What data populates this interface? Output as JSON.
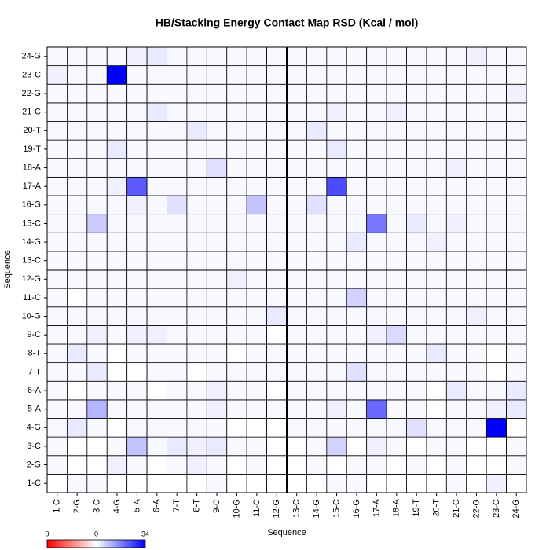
{
  "chart_data": {
    "type": "heatmap",
    "title": "HB/Stacking Energy Contact Map RSD (Kcal / mol)",
    "xlabel": "Sequence",
    "ylabel": "Sequence",
    "categories": [
      "1-C",
      "2-G",
      "3-C",
      "4-G",
      "5-A",
      "6-A",
      "7-T",
      "8-T",
      "9-C",
      "10-G",
      "11-C",
      "12-G",
      "13-C",
      "14-G",
      "15-C",
      "16-G",
      "17-A",
      "18-A",
      "19-T",
      "20-T",
      "21-C",
      "22-G",
      "23-C",
      "24-G"
    ],
    "values": [
      [
        0,
        1,
        1,
        0,
        0,
        0,
        0,
        0,
        1,
        0,
        0,
        0,
        0,
        0,
        1,
        1,
        0,
        0,
        0,
        0,
        1,
        0,
        2,
        0
      ],
      [
        1,
        0,
        0,
        2,
        1,
        0,
        1,
        2,
        1,
        0,
        1,
        0,
        0,
        1,
        0,
        1,
        1,
        0,
        1,
        0,
        1,
        0,
        0,
        1
      ],
      [
        1,
        0,
        0,
        1,
        8,
        1,
        3,
        2,
        3,
        1,
        1,
        0,
        0,
        1,
        6,
        0,
        2,
        1,
        0,
        1,
        1,
        0,
        0,
        1
      ],
      [
        1,
        3,
        1,
        0,
        1,
        1,
        1,
        1,
        1,
        0,
        0,
        0,
        1,
        1,
        1,
        1,
        1,
        1,
        4,
        1,
        1,
        1,
        34,
        0
      ],
      [
        1,
        1,
        10,
        1,
        1,
        1,
        1,
        1,
        2,
        1,
        1,
        1,
        1,
        1,
        2,
        1,
        20,
        1,
        1,
        0,
        1,
        1,
        2,
        3
      ],
      [
        1,
        0,
        1,
        1,
        1,
        0,
        1,
        1,
        2,
        1,
        1,
        0,
        1,
        1,
        1,
        1,
        1,
        1,
        1,
        0,
        3,
        1,
        1,
        3
      ],
      [
        1,
        1,
        3,
        0,
        0,
        1,
        1,
        0,
        1,
        1,
        1,
        1,
        1,
        1,
        1,
        4,
        1,
        1,
        1,
        1,
        1,
        1,
        0,
        1
      ],
      [
        1,
        3,
        1,
        0,
        1,
        1,
        1,
        1,
        1,
        0,
        1,
        1,
        1,
        1,
        1,
        1,
        1,
        1,
        1,
        3,
        1,
        1,
        0,
        1
      ],
      [
        1,
        1,
        2,
        1,
        2,
        2,
        1,
        1,
        1,
        1,
        1,
        0,
        1,
        1,
        1,
        1,
        2,
        5,
        1,
        1,
        1,
        1,
        1,
        1
      ],
      [
        1,
        1,
        1,
        1,
        1,
        1,
        1,
        1,
        1,
        1,
        1,
        3,
        1,
        1,
        1,
        1,
        1,
        1,
        1,
        1,
        1,
        2,
        1,
        1
      ],
      [
        1,
        0,
        1,
        1,
        1,
        1,
        1,
        1,
        1,
        1,
        1,
        1,
        1,
        1,
        1,
        6,
        1,
        1,
        1,
        1,
        1,
        1,
        1,
        1
      ],
      [
        1,
        1,
        1,
        1,
        1,
        1,
        1,
        1,
        1,
        2,
        1,
        1,
        1,
        1,
        1,
        1,
        1,
        1,
        1,
        1,
        1,
        1,
        1,
        1
      ],
      [
        1,
        1,
        1,
        1,
        1,
        1,
        1,
        1,
        1,
        1,
        1,
        1,
        1,
        1,
        1,
        1,
        1,
        1,
        1,
        1,
        1,
        1,
        1,
        1
      ],
      [
        1,
        1,
        1,
        1,
        1,
        1,
        1,
        1,
        1,
        1,
        1,
        1,
        1,
        1,
        1,
        3,
        1,
        1,
        1,
        2,
        1,
        1,
        1,
        1
      ],
      [
        1,
        1,
        7,
        1,
        1,
        1,
        1,
        1,
        1,
        1,
        1,
        1,
        1,
        1,
        1,
        1,
        18,
        1,
        3,
        1,
        2,
        1,
        1,
        1
      ],
      [
        1,
        1,
        1,
        1,
        2,
        1,
        4,
        1,
        1,
        1,
        8,
        1,
        1,
        4,
        1,
        1,
        1,
        1,
        1,
        1,
        1,
        1,
        1,
        1
      ],
      [
        1,
        1,
        1,
        2,
        22,
        1,
        1,
        1,
        1,
        1,
        1,
        1,
        1,
        1,
        24,
        1,
        1,
        1,
        1,
        1,
        1,
        1,
        1,
        1
      ],
      [
        1,
        1,
        1,
        1,
        1,
        1,
        1,
        1,
        4,
        1,
        1,
        1,
        1,
        1,
        1,
        1,
        1,
        1,
        1,
        1,
        2,
        1,
        1,
        1
      ],
      [
        1,
        1,
        1,
        3,
        1,
        1,
        1,
        1,
        1,
        1,
        1,
        1,
        1,
        1,
        3,
        1,
        1,
        1,
        1,
        1,
        1,
        1,
        1,
        1
      ],
      [
        1,
        1,
        1,
        1,
        1,
        1,
        1,
        3,
        1,
        1,
        1,
        1,
        1,
        3,
        1,
        1,
        1,
        1,
        1,
        1,
        1,
        1,
        1,
        1
      ],
      [
        1,
        1,
        1,
        1,
        1,
        3,
        1,
        1,
        1,
        1,
        1,
        1,
        1,
        1,
        2,
        1,
        1,
        2,
        1,
        1,
        1,
        1,
        1,
        1
      ],
      [
        1,
        1,
        1,
        1,
        1,
        1,
        1,
        1,
        1,
        1,
        1,
        1,
        1,
        1,
        1,
        1,
        1,
        1,
        1,
        1,
        1,
        1,
        1,
        2
      ],
      [
        2,
        1,
        1,
        34,
        1,
        1,
        1,
        1,
        1,
        1,
        1,
        1,
        1,
        1,
        1,
        1,
        1,
        1,
        1,
        1,
        1,
        1,
        1,
        1
      ],
      [
        1,
        1,
        1,
        1,
        2,
        3,
        1,
        1,
        1,
        1,
        1,
        1,
        1,
        1,
        1,
        1,
        1,
        1,
        1,
        1,
        1,
        2,
        1,
        1
      ]
    ],
    "clim": [
      0,
      34
    ],
    "color": "#0000ff",
    "colorbar_labels": [
      "0",
      "0",
      "34"
    ]
  }
}
